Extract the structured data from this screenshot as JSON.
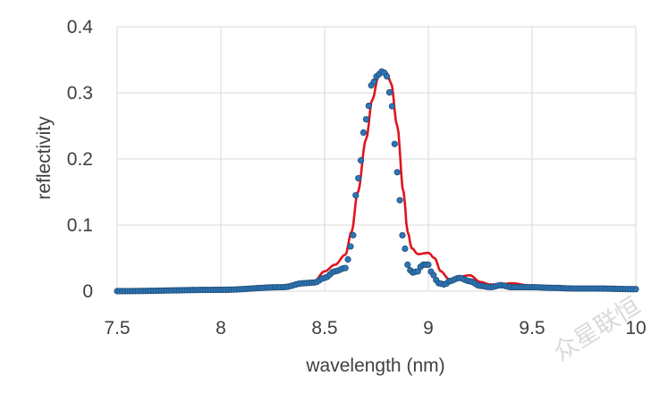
{
  "chart_data": {
    "type": "line",
    "title": "",
    "xlabel": "wavelength (nm)",
    "ylabel": "reflectivity",
    "xlim": [
      7.5,
      10
    ],
    "ylim": [
      0,
      0.4
    ],
    "x_ticks": [
      "7.5",
      "8",
      "8.5",
      "9",
      "9.5",
      "10"
    ],
    "y_ticks": [
      "0",
      "0.1",
      "0.2",
      "0.3",
      "0.4"
    ],
    "grid": true,
    "legend": "none",
    "colors": {
      "line": "#e0141e",
      "markers": "#2e75b6",
      "marker_edge": "#1f4e79",
      "grid": "#d9d9d9"
    },
    "series": [
      {
        "name": "line",
        "style": "line",
        "x": [
          7.5,
          8.0,
          8.3,
          8.4,
          8.45,
          8.5,
          8.55,
          8.6,
          8.63,
          8.66,
          8.7,
          8.73,
          8.76,
          8.78,
          8.8,
          8.82,
          8.85,
          8.88,
          8.9,
          8.92,
          8.95,
          9.0,
          9.03,
          9.06,
          9.1,
          9.15,
          9.2,
          9.25,
          9.3,
          9.35,
          9.4,
          9.5,
          9.6,
          9.7,
          9.8,
          10.0
        ],
        "y": [
          0.0,
          0.002,
          0.006,
          0.012,
          0.015,
          0.03,
          0.04,
          0.055,
          0.09,
          0.15,
          0.23,
          0.29,
          0.325,
          0.333,
          0.33,
          0.315,
          0.25,
          0.15,
          0.09,
          0.065,
          0.056,
          0.058,
          0.05,
          0.03,
          0.018,
          0.022,
          0.024,
          0.014,
          0.01,
          0.01,
          0.012,
          0.008,
          0.006,
          0.004,
          0.004,
          0.003
        ]
      },
      {
        "name": "markers",
        "style": "markers",
        "x": [
          7.5,
          8.0,
          8.3,
          8.4,
          8.45,
          8.5,
          8.55,
          8.6,
          8.63,
          8.66,
          8.7,
          8.73,
          8.76,
          8.78,
          8.8,
          8.82,
          8.84,
          8.86,
          8.88,
          8.9,
          8.92,
          8.95,
          8.97,
          9.0,
          9.02,
          9.05,
          9.08,
          9.1,
          9.15,
          9.2,
          9.25,
          9.3,
          9.35,
          9.4,
          9.5,
          9.6,
          9.7,
          9.8,
          10.0
        ],
        "y": [
          0.0,
          0.002,
          0.006,
          0.012,
          0.013,
          0.02,
          0.03,
          0.035,
          0.07,
          0.17,
          0.26,
          0.315,
          0.328,
          0.333,
          0.325,
          0.29,
          0.22,
          0.14,
          0.075,
          0.04,
          0.028,
          0.03,
          0.04,
          0.04,
          0.025,
          0.012,
          0.01,
          0.015,
          0.02,
          0.015,
          0.008,
          0.006,
          0.009,
          0.006,
          0.006,
          0.005,
          0.004,
          0.004,
          0.003
        ]
      }
    ]
  },
  "watermark": "众星联恒"
}
